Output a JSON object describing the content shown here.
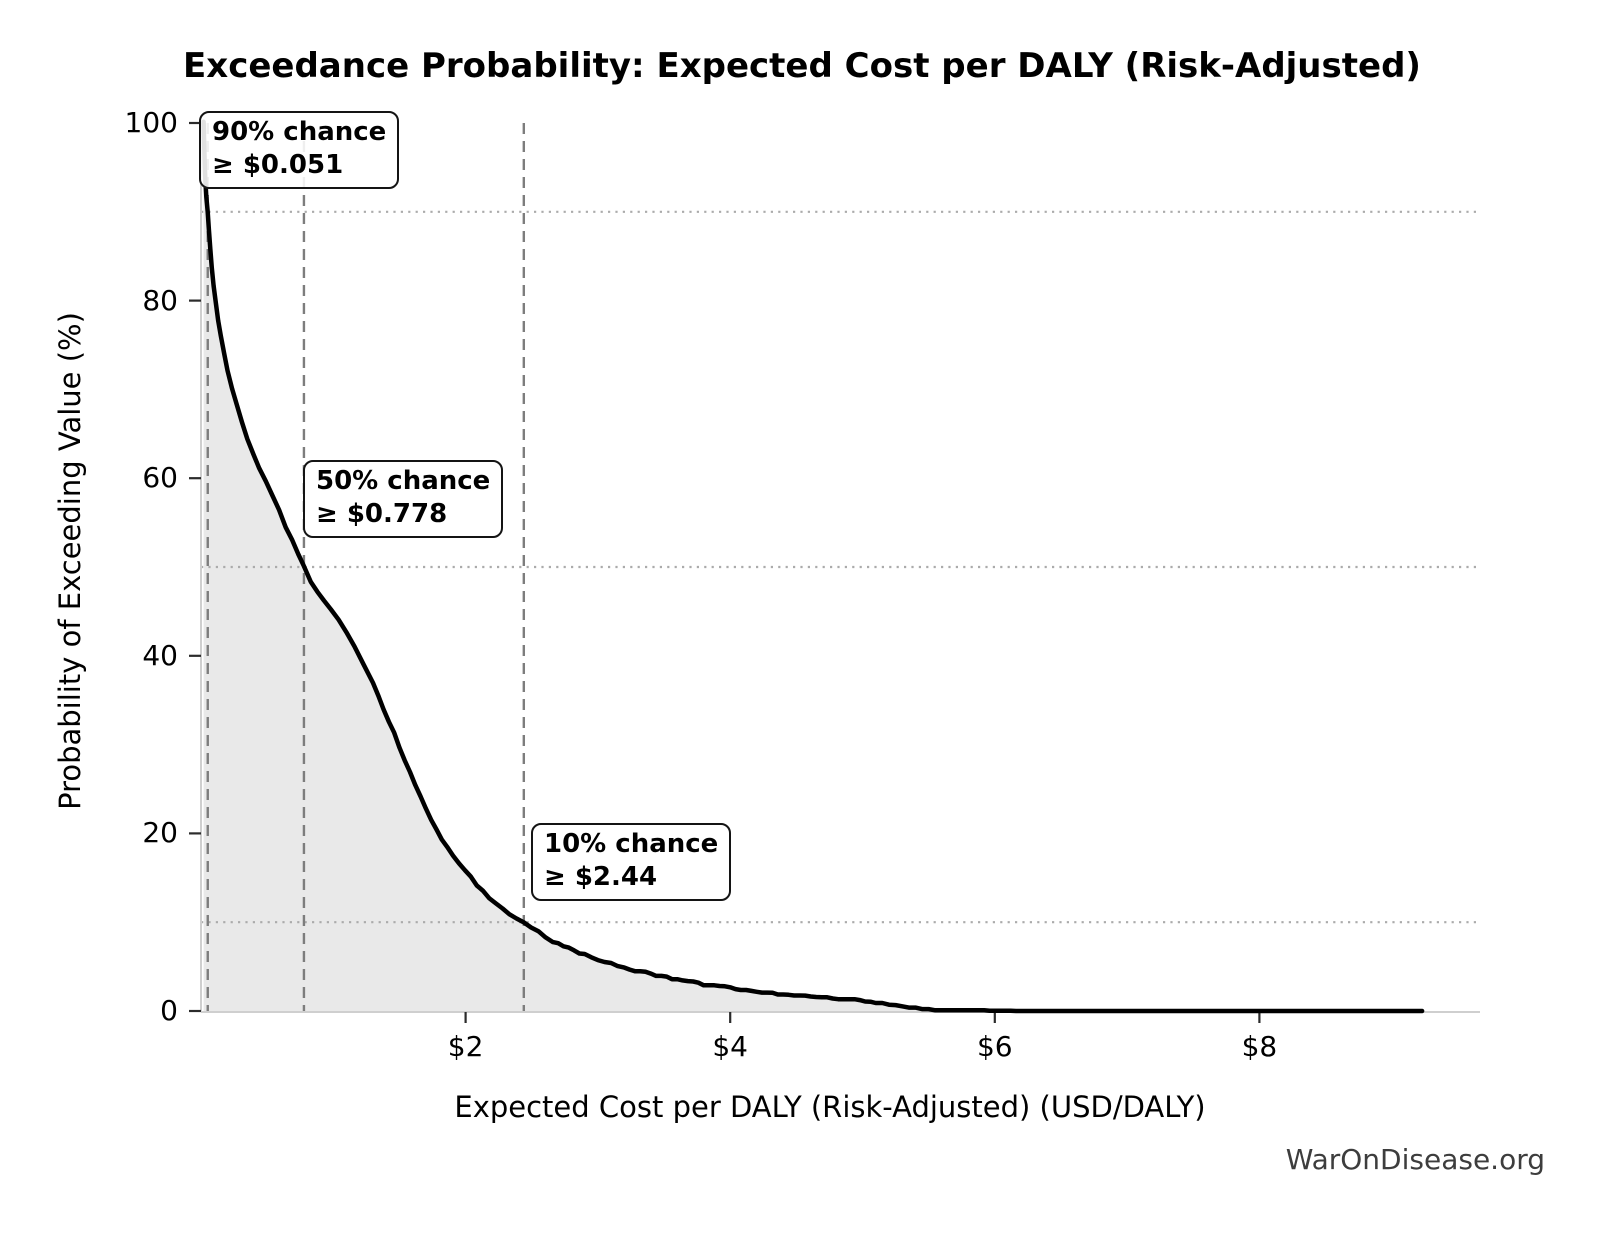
{
  "title": "Exceedance Probability: Expected Cost per DALY (Risk-Adjusted)",
  "watermark": "WarOnDisease.org",
  "chart_data": {
    "type": "line",
    "title": "Exceedance Probability: Expected Cost per DALY (Risk-Adjusted)",
    "xlabel": "Expected Cost per DALY (Risk-Adjusted) (USD/DALY)",
    "ylabel": "Probability of Exceeding Value (%)",
    "xlim": [
      0,
      9.7
    ],
    "ylim": [
      0,
      100
    ],
    "legend_position": "none",
    "grid": "reference lines only",
    "x_ticks": [
      {
        "value": 2,
        "label": "$2"
      },
      {
        "value": 4,
        "label": "$4"
      },
      {
        "value": 6,
        "label": "$6"
      },
      {
        "value": 8,
        "label": "$8"
      }
    ],
    "y_ticks": [
      {
        "value": 0,
        "label": "0"
      },
      {
        "value": 20,
        "label": "20"
      },
      {
        "value": 40,
        "label": "40"
      },
      {
        "value": 60,
        "label": "60"
      },
      {
        "value": 80,
        "label": "80"
      },
      {
        "value": 100,
        "label": "100"
      }
    ],
    "colors": {
      "curve": "#000000",
      "fill": "#e9e9e9",
      "dashed_reference": "#7d7d7d",
      "dotted_reference": "#ababab",
      "spine": "#cfcfcf",
      "tick": "#2b2b2b",
      "watermark": "#3d3d3d"
    },
    "annotations": [
      {
        "line1": "90% chance",
        "line2": "≥ $0.051",
        "x": 0.051,
        "probability": 90
      },
      {
        "line1": "50% chance",
        "line2": "≥ $0.778",
        "x": 0.778,
        "probability": 50
      },
      {
        "line1": "10% chance",
        "line2": "≥ $2.44",
        "x": 2.44,
        "probability": 10
      }
    ],
    "series": [
      {
        "name": "exceedance-curve",
        "points": [
          [
            0.02,
            100
          ],
          [
            0.024,
            97.5
          ],
          [
            0.028,
            95.5
          ],
          [
            0.033,
            93.5
          ],
          [
            0.04,
            91.8
          ],
          [
            0.051,
            90.0
          ],
          [
            0.06,
            88.0
          ],
          [
            0.07,
            85.8
          ],
          [
            0.082,
            83.6
          ],
          [
            0.095,
            81.6
          ],
          [
            0.11,
            79.8
          ],
          [
            0.13,
            77.8
          ],
          [
            0.15,
            76.0
          ],
          [
            0.175,
            74.0
          ],
          [
            0.2,
            72.2
          ],
          [
            0.235,
            70.2
          ],
          [
            0.27,
            68.3
          ],
          [
            0.31,
            66.3
          ],
          [
            0.35,
            64.5
          ],
          [
            0.395,
            62.8
          ],
          [
            0.44,
            61.2
          ],
          [
            0.49,
            59.6
          ],
          [
            0.54,
            58.0
          ],
          [
            0.59,
            56.3
          ],
          [
            0.64,
            54.6
          ],
          [
            0.69,
            53.0
          ],
          [
            0.735,
            51.5
          ],
          [
            0.778,
            50.0
          ],
          [
            0.83,
            48.3
          ],
          [
            0.88,
            47.2
          ],
          [
            0.93,
            46.3
          ],
          [
            0.98,
            45.2
          ],
          [
            1.04,
            44.0
          ],
          [
            1.1,
            42.7
          ],
          [
            1.16,
            41.0
          ],
          [
            1.23,
            38.9
          ],
          [
            1.3,
            36.8
          ],
          [
            1.38,
            34.0
          ],
          [
            1.46,
            31.2
          ],
          [
            1.54,
            28.3
          ],
          [
            1.62,
            25.5
          ],
          [
            1.7,
            22.8
          ],
          [
            1.78,
            20.4
          ],
          [
            1.86,
            18.4
          ],
          [
            1.95,
            16.6
          ],
          [
            2.04,
            15.0
          ],
          [
            2.13,
            13.5
          ],
          [
            2.23,
            12.1
          ],
          [
            2.33,
            11.0
          ],
          [
            2.44,
            10.0
          ],
          [
            2.55,
            8.9
          ],
          [
            2.66,
            7.9
          ],
          [
            2.78,
            7.0
          ],
          [
            2.9,
            6.3
          ],
          [
            3.05,
            5.6
          ],
          [
            3.2,
            4.9
          ],
          [
            3.4,
            4.2
          ],
          [
            3.6,
            3.6
          ],
          [
            3.8,
            3.0
          ],
          [
            4.0,
            2.6
          ],
          [
            4.2,
            2.2
          ],
          [
            4.4,
            1.9
          ],
          [
            4.65,
            1.6
          ],
          [
            4.9,
            1.3
          ],
          [
            5.1,
            0.9
          ],
          [
            5.25,
            0.6
          ],
          [
            5.4,
            0.35
          ],
          [
            5.55,
            0.2
          ],
          [
            5.8,
            0.13
          ],
          [
            6.2,
            0.1
          ],
          [
            7.0,
            0.08
          ],
          [
            8.0,
            0.06
          ],
          [
            9.0,
            0.05
          ],
          [
            9.23,
            0.0
          ]
        ]
      }
    ]
  }
}
